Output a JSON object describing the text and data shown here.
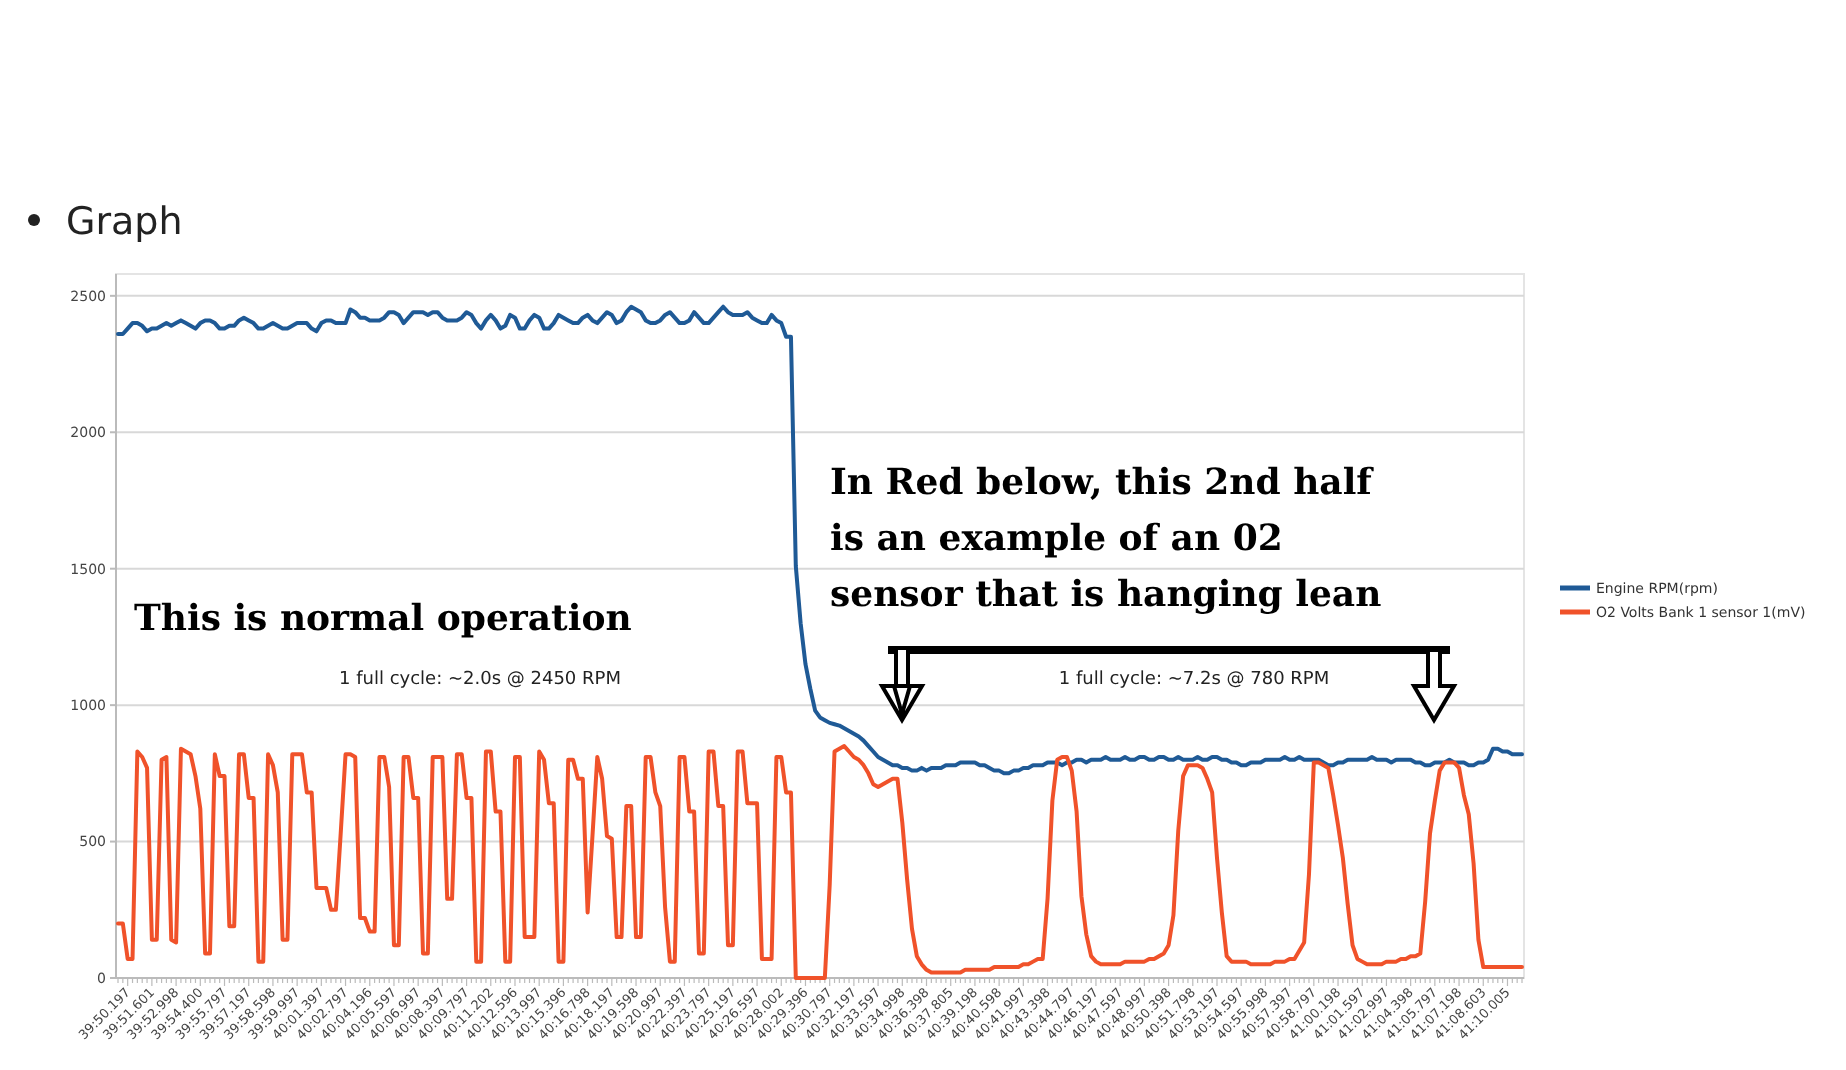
{
  "chart_data": {
    "type": "line",
    "title": "Graph",
    "categories": [
      null,
      null,
      "39:50.197",
      null,
      null,
      null,
      null,
      "39:51.601",
      null,
      null,
      null,
      null,
      "39:52.998",
      null,
      null,
      null,
      null,
      "39:54.400",
      null,
      null,
      null,
      null,
      "39:55.797",
      null,
      null,
      null,
      null,
      "39:57.197",
      null,
      null,
      null,
      null,
      "39:58.598",
      null,
      null,
      null,
      null,
      "39:59.997",
      null,
      null,
      null,
      null,
      "40:01.397",
      null,
      null,
      null,
      null,
      "40:02.797",
      null,
      null,
      null,
      null,
      "40:04.196",
      null,
      null,
      null,
      null,
      "40:05.597",
      null,
      null,
      null,
      null,
      "40:06.997",
      null,
      null,
      null,
      null,
      "40:08.397",
      null,
      null,
      null,
      null,
      "40:09.797",
      null,
      null,
      null,
      null,
      "40:11.202",
      null,
      null,
      null,
      null,
      "40:12.596",
      null,
      null,
      null,
      null,
      "40:13.997",
      null,
      null,
      null,
      null,
      "40:15.396",
      null,
      null,
      null,
      null,
      "40:16.798",
      null,
      null,
      null,
      null,
      "40:18.197",
      null,
      null,
      null,
      null,
      "40:19.598",
      null,
      null,
      null,
      null,
      "40:20.997",
      null,
      null,
      null,
      null,
      "40:22.397",
      null,
      null,
      null,
      null,
      "40:23.797",
      null,
      null,
      null,
      null,
      "40:25.197",
      null,
      null,
      null,
      null,
      "40:26.597",
      null,
      null,
      null,
      null,
      "40:28.002",
      null,
      null,
      null,
      null,
      "40:29.396",
      null,
      null,
      null,
      null,
      "40:30.797",
      null,
      null,
      null,
      null,
      "40:32.197",
      null,
      null,
      null,
      null,
      "40:33.597",
      null,
      null,
      null,
      null,
      "40:34.998",
      null,
      null,
      null,
      null,
      "40:36.398",
      null,
      null,
      null,
      null,
      "40:37.805",
      null,
      null,
      null,
      null,
      "40:39.198",
      null,
      null,
      null,
      null,
      "40:40.598",
      null,
      null,
      null,
      null,
      "40:41.997",
      null,
      null,
      null,
      null,
      "40:43.398",
      null,
      null,
      null,
      null,
      "40:44.797",
      null,
      null,
      null,
      null,
      "40:46.197",
      null,
      null,
      null,
      null,
      "40:47.597",
      null,
      null,
      null,
      null,
      "40:48.997",
      null,
      null,
      null,
      null,
      "40:50.398",
      null,
      null,
      null,
      null,
      "40:51.798",
      null,
      null,
      null,
      null,
      "40:53.197",
      null,
      null,
      null,
      null,
      "40:54.597",
      null,
      null,
      null,
      null,
      "40:55.998",
      null,
      null,
      null,
      null,
      "40:57.397",
      null,
      null,
      null,
      null,
      "40:58.797",
      null,
      null,
      null,
      null,
      "41:00.198",
      null,
      null,
      null,
      null,
      "41:01.597",
      null,
      null,
      null,
      null,
      "41:02.997",
      null,
      null,
      null,
      null,
      "41:04.398",
      null,
      null,
      null,
      null,
      "41:05.797",
      null,
      null,
      null,
      null,
      "41:07.198",
      null,
      null,
      null,
      null,
      "41:08.603",
      null,
      null,
      null,
      null,
      "41:10.005",
      null,
      null,
      null
    ],
    "ylim": [
      0,
      2580
    ],
    "yticks": [
      0,
      500,
      1000,
      1500,
      2000,
      2500
    ],
    "grid": "y",
    "legend": "right",
    "annotations": [
      "This is normal operation",
      "1 full cycle: ~2.0s @ 2450 RPM",
      "In Red below, this 2nd half\nis an example of an 02\nsensor that is hanging lean",
      "1 full cycle: ~7.2s @ 780 RPM"
    ],
    "series": [
      {
        "name": "Engine RPM(rpm)",
        "color": "#1f5a96",
        "values": [
          2360,
          2360,
          2380,
          2400,
          2400,
          2390,
          2370,
          2380,
          2380,
          2390,
          2400,
          2390,
          2400,
          2410,
          2400,
          2390,
          2380,
          2400,
          2410,
          2410,
          2400,
          2380,
          2380,
          2390,
          2390,
          2410,
          2420,
          2410,
          2400,
          2380,
          2380,
          2390,
          2400,
          2390,
          2380,
          2380,
          2390,
          2400,
          2400,
          2400,
          2380,
          2370,
          2400,
          2410,
          2410,
          2400,
          2400,
          2400,
          2450,
          2440,
          2420,
          2420,
          2410,
          2410,
          2410,
          2420,
          2440,
          2440,
          2430,
          2400,
          2420,
          2440,
          2440,
          2440,
          2430,
          2440,
          2440,
          2420,
          2410,
          2410,
          2410,
          2420,
          2440,
          2430,
          2400,
          2380,
          2410,
          2430,
          2410,
          2380,
          2390,
          2430,
          2420,
          2380,
          2380,
          2410,
          2430,
          2420,
          2380,
          2380,
          2400,
          2430,
          2420,
          2410,
          2400,
          2400,
          2420,
          2430,
          2410,
          2400,
          2420,
          2440,
          2430,
          2400,
          2410,
          2440,
          2460,
          2450,
          2440,
          2410,
          2400,
          2400,
          2410,
          2430,
          2440,
          2420,
          2400,
          2400,
          2410,
          2440,
          2420,
          2400,
          2400,
          2420,
          2440,
          2460,
          2440,
          2430,
          2430,
          2430,
          2440,
          2420,
          2410,
          2400,
          2400,
          2430,
          2410,
          2400,
          2350,
          2350,
          1510,
          1300,
          1150,
          1060,
          980,
          955,
          945,
          935,
          930,
          925,
          915,
          905,
          895,
          885,
          870,
          850,
          830,
          810,
          800,
          790,
          780,
          780,
          770,
          770,
          760,
          760,
          770,
          760,
          770,
          770,
          770,
          780,
          780,
          780,
          790,
          790,
          790,
          790,
          780,
          780,
          770,
          760,
          760,
          750,
          750,
          760,
          760,
          770,
          770,
          780,
          780,
          780,
          790,
          790,
          790,
          780,
          790,
          790,
          800,
          800,
          790,
          800,
          800,
          800,
          810,
          800,
          800,
          800,
          810,
          800,
          800,
          810,
          810,
          800,
          800,
          810,
          810,
          800,
          800,
          810,
          800,
          800,
          800,
          810,
          800,
          800,
          810,
          810,
          800,
          800,
          790,
          790,
          780,
          780,
          790,
          790,
          790,
          800,
          800,
          800,
          800,
          810,
          800,
          800,
          810,
          800,
          800,
          800,
          800,
          790,
          780,
          780,
          790,
          790,
          800,
          800,
          800,
          800,
          800,
          810,
          800,
          800,
          800,
          790,
          800,
          800,
          800,
          800,
          790,
          790,
          780,
          780,
          790,
          790,
          790,
          800,
          790,
          790,
          790,
          780,
          780,
          790,
          790,
          800,
          840,
          840,
          830,
          830,
          820,
          820,
          820
        ]
      },
      {
        "name": "O2 Volts Bank 1 sensor 1(mV)",
        "color": "#f0522a",
        "values": [
          200,
          200,
          70,
          70,
          830,
          810,
          770,
          140,
          140,
          800,
          810,
          140,
          130,
          840,
          830,
          820,
          740,
          620,
          90,
          90,
          820,
          740,
          740,
          190,
          190,
          820,
          820,
          660,
          660,
          60,
          60,
          820,
          780,
          680,
          140,
          140,
          820,
          820,
          820,
          680,
          680,
          330,
          330,
          330,
          250,
          250,
          530,
          820,
          820,
          810,
          220,
          220,
          170,
          170,
          810,
          810,
          700,
          120,
          120,
          810,
          810,
          660,
          660,
          90,
          90,
          810,
          810,
          810,
          290,
          290,
          820,
          820,
          660,
          660,
          60,
          60,
          830,
          830,
          610,
          610,
          60,
          60,
          810,
          810,
          150,
          150,
          150,
          830,
          800,
          640,
          640,
          60,
          60,
          800,
          800,
          730,
          730,
          240,
          520,
          810,
          730,
          520,
          510,
          150,
          150,
          630,
          630,
          150,
          150,
          810,
          810,
          680,
          630,
          260,
          60,
          60,
          810,
          810,
          610,
          610,
          90,
          90,
          830,
          830,
          630,
          630,
          120,
          120,
          830,
          830,
          640,
          640,
          640,
          70,
          70,
          70,
          810,
          810,
          680,
          680,
          0,
          0,
          0,
          0,
          0,
          0,
          0,
          340,
          830,
          840,
          850,
          830,
          810,
          800,
          780,
          750,
          710,
          700,
          710,
          720,
          730,
          730,
          570,
          360,
          180,
          80,
          50,
          30,
          20,
          20,
          20,
          20,
          20,
          20,
          20,
          30,
          30,
          30,
          30,
          30,
          30,
          40,
          40,
          40,
          40,
          40,
          40,
          50,
          50,
          60,
          70,
          70,
          290,
          650,
          800,
          810,
          810,
          760,
          610,
          300,
          160,
          80,
          60,
          50,
          50,
          50,
          50,
          50,
          60,
          60,
          60,
          60,
          60,
          70,
          70,
          80,
          90,
          120,
          230,
          540,
          740,
          780,
          780,
          780,
          770,
          730,
          680,
          440,
          240,
          80,
          60,
          60,
          60,
          60,
          50,
          50,
          50,
          50,
          50,
          60,
          60,
          60,
          70,
          70,
          100,
          130,
          380,
          790,
          790,
          780,
          770,
          670,
          560,
          440,
          270,
          120,
          70,
          60,
          50,
          50,
          50,
          50,
          60,
          60,
          60,
          70,
          70,
          80,
          80,
          90,
          280,
          530,
          650,
          760,
          790,
          790,
          790,
          770,
          670,
          600,
          420,
          140,
          40,
          40,
          40,
          40,
          40,
          40,
          40,
          40,
          40
        ]
      }
    ]
  }
}
